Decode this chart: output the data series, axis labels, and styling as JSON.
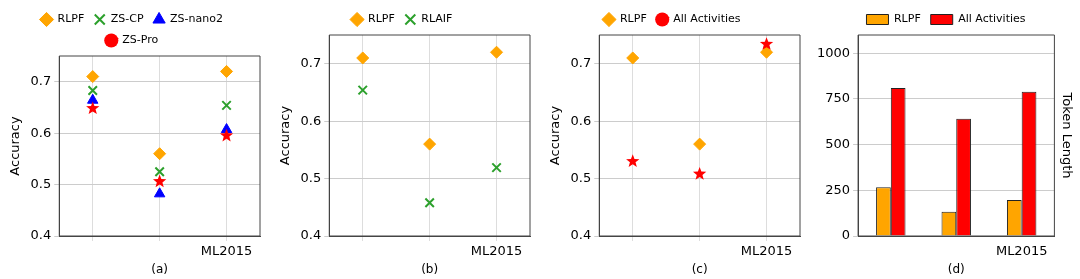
{
  "chart_data": [
    {
      "type": "scatter",
      "xlabel": "(a)",
      "ylabel": "Accuracy",
      "categories": [
        null,
        null,
        "ML2015"
      ],
      "ylim": [
        0.4,
        0.75
      ],
      "yticks": [
        0.4,
        0.5,
        0.6,
        0.7
      ],
      "grid": true,
      "legend": "top",
      "series": [
        {
          "name": "RLPF",
          "color": "#ffa500",
          "marker": "diamond",
          "values": [
            0.71,
            0.56,
            0.72
          ]
        },
        {
          "name": "ZS-CP",
          "color": "#2ca02c",
          "marker": "cross",
          "values": [
            0.683,
            0.525,
            0.654
          ]
        },
        {
          "name": "ZS-nano2",
          "color": "#0000ff",
          "marker": "triangle",
          "values": [
            0.664,
            0.482,
            0.607
          ]
        },
        {
          "name": "ZS-Pro",
          "color": "#ff0000",
          "marker": "star",
          "values": [
            0.648,
            0.506,
            0.595
          ]
        }
      ]
    },
    {
      "type": "scatter",
      "xlabel": "(b)",
      "ylabel": "Accuracy",
      "categories": [
        null,
        null,
        "ML2015"
      ],
      "ylim": [
        0.4,
        0.75
      ],
      "yticks": [
        0.4,
        0.5,
        0.6,
        0.7
      ],
      "grid": true,
      "legend": "top",
      "series": [
        {
          "name": "RLPF",
          "color": "#ffa500",
          "marker": "diamond",
          "values": [
            0.71,
            0.56,
            0.72
          ]
        },
        {
          "name": "RLAIF",
          "color": "#2ca02c",
          "marker": "cross",
          "values": [
            0.654,
            0.458,
            0.519
          ]
        }
      ]
    },
    {
      "type": "scatter",
      "xlabel": "(c)",
      "ylabel": "Accuracy",
      "categories": [
        null,
        null,
        "ML2015"
      ],
      "ylim": [
        0.4,
        0.75
      ],
      "yticks": [
        0.4,
        0.5,
        0.6,
        0.7
      ],
      "grid": true,
      "legend": "top",
      "series": [
        {
          "name": "RLPF",
          "color": "#ffa500",
          "marker": "diamond",
          "values": [
            0.71,
            0.56,
            0.72
          ]
        },
        {
          "name": "All Activities",
          "color": "#ff0000",
          "marker": "star",
          "values": [
            0.53,
            0.508,
            0.734
          ]
        }
      ]
    },
    {
      "type": "bar",
      "xlabel": "(d)",
      "y2label": "Token Length",
      "categories": [
        null,
        null,
        "ML2015"
      ],
      "ylim": [
        0,
        1100
      ],
      "yticks": [
        0,
        250,
        500,
        750,
        1000
      ],
      "grid": "y",
      "legend": "top",
      "series": [
        {
          "name": "RLPF",
          "color": "#ffa500",
          "values": [
            267,
            133,
            197
          ]
        },
        {
          "name": "All Activities",
          "color": "#ff0000",
          "values": [
            810,
            642,
            789
          ]
        }
      ]
    }
  ]
}
